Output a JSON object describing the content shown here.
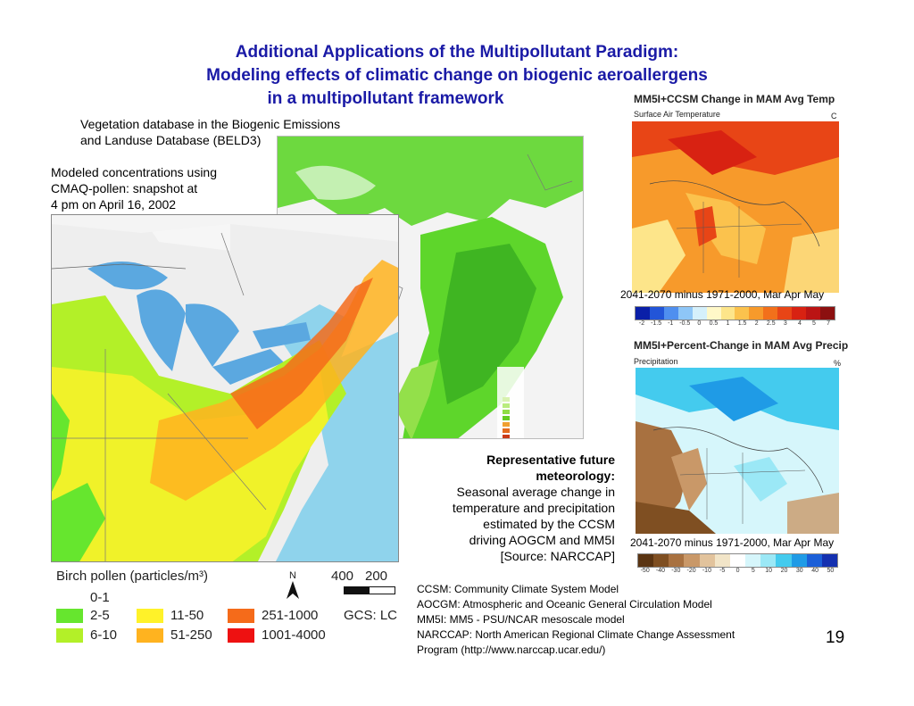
{
  "title": {
    "line1": "Additional Applications of the Multipollutant Paradigm:",
    "line2": "Modeling effects of climatic change on biogenic aeroallergens",
    "line3": "in a multipollutant framework"
  },
  "vegetation_caption": {
    "line1": "Vegetation database in the Biogenic Emissions",
    "line2": "and Landuse Database (BELD3)"
  },
  "modeled_caption": {
    "line1": "Modeled concentrations using",
    "line2": "CMAQ-pollen: snapshot at",
    "line3": "4 pm on April 16, 2002"
  },
  "pollen_legend": {
    "title": "Birch pollen (particles/m³)",
    "items": [
      {
        "label": "0-1",
        "color": "#ffffff"
      },
      {
        "label": "2-5",
        "color": "#66e62e"
      },
      {
        "label": "6-10",
        "color": "#b3f028"
      },
      {
        "label": "11-50",
        "color": "#fff229"
      },
      {
        "label": "51-250",
        "color": "#ffb31f"
      },
      {
        "label": "251-1000",
        "color": "#f56b1a"
      },
      {
        "label": "1001-4000",
        "color": "#ee1111"
      }
    ],
    "north": "N",
    "scale_400": "400",
    "scale_200": "200",
    "gcs": "GCS: LC"
  },
  "temp_map": {
    "title": "MM5I+CCSM Change in MAM Avg Temp",
    "subtitle": "Surface Air Temperature",
    "unit": "C",
    "caption": "2041-2070 minus 1971-2000, Mar Apr  May",
    "ticks": [
      "-2",
      "-1.5",
      "-1",
      "-0.5",
      "0",
      "0.5",
      "1",
      "1.5",
      "2",
      "2.5",
      "3",
      "4",
      "5",
      "7"
    ],
    "colors": [
      "#0a1fa8",
      "#2255d8",
      "#4f8fef",
      "#8ec6f7",
      "#d5f0fb",
      "#fff8c8",
      "#fde58a",
      "#fbc24d",
      "#f79a2b",
      "#f2701b",
      "#e84516",
      "#d82212",
      "#bb1414",
      "#8c1010"
    ]
  },
  "precip_map": {
    "title": "MM5I+Percent-Change in MAM Avg Precip",
    "subtitle": "Precipitation",
    "unit": "%",
    "caption": "2041-2070 minus 1971-2000, Mar Apr  May",
    "ticks": [
      "-50",
      "-40",
      "-30",
      "-20",
      "-10",
      "-5",
      "0",
      "5",
      "10",
      "20",
      "30",
      "40",
      "50"
    ],
    "colors": [
      "#5a3412",
      "#7f4f22",
      "#a87140",
      "#c99868",
      "#e2c39c",
      "#f2e5c8",
      "#ffffff",
      "#d6f6fb",
      "#9be8f6",
      "#44cbee",
      "#1f9be6",
      "#1b5fd8",
      "#1430b0"
    ]
  },
  "meteorology": {
    "heading1": "Representative future",
    "heading2": "meteorology:",
    "line1": "Seasonal average change in",
    "line2": "temperature and precipitation",
    "line3": "estimated by the CCSM",
    "line4": "driving  AOGCM and MM5I",
    "line5": "[Source: NARCCAP]"
  },
  "glossary": [
    "CCSM: Community Climate System Model",
    "AOCGM: Atmospheric and Oceanic General Circulation Model",
    "MM5I: MM5 - PSU/NCAR mesoscale model",
    "NARCCAP: North American Regional Climate Change Assessment",
    "Program (http://www.narccap.ucar.edu/)"
  ],
  "page_number": "19"
}
